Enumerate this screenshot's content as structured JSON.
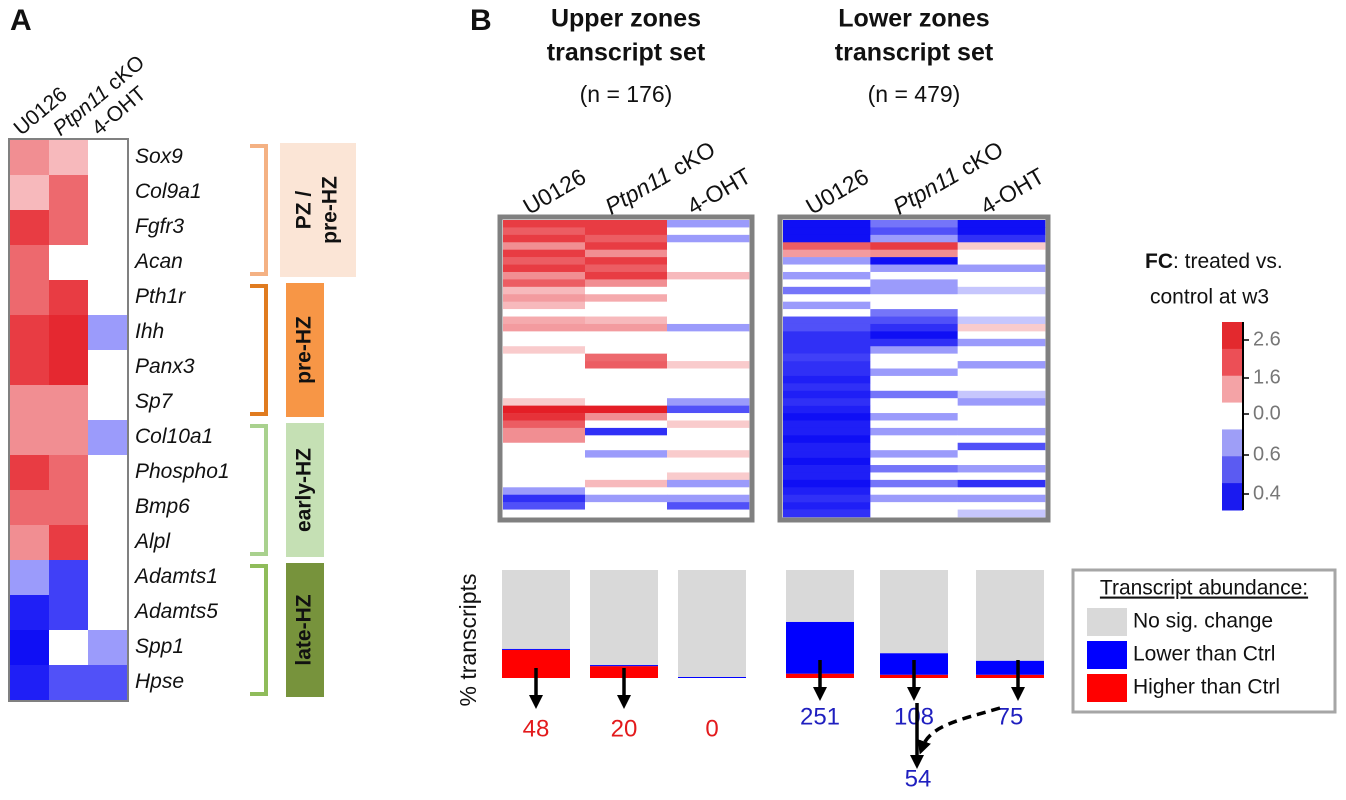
{
  "panel_labels": [
    "A",
    "B"
  ],
  "chart_data": [
    {
      "type": "heatmap",
      "columns": [
        "U0126",
        "Ptpn11 cKO",
        "4-OHT"
      ],
      "rows": [
        "Sox9",
        "Col9a1",
        "Fgfr3",
        "Acan",
        "Pth1r",
        "Ihh",
        "Panx3",
        "Sp7",
        "Col10a1",
        "Phospho1",
        "Bmp6",
        "Alpl",
        "Adamts1",
        "Adamts5",
        "Spp1",
        "Hpse"
      ],
      "values": [
        [
          1.6,
          1.3,
          1
        ],
        [
          1.3,
          1.9,
          1
        ],
        [
          2.3,
          1.9,
          1
        ],
        [
          1.9,
          1,
          1
        ],
        [
          1.9,
          2.3,
          1
        ],
        [
          2.3,
          2.5,
          0.8
        ],
        [
          2.3,
          2.5,
          1
        ],
        [
          1.6,
          1.6,
          1
        ],
        [
          1.6,
          1.6,
          0.8
        ],
        [
          2.3,
          1.9,
          1
        ],
        [
          1.9,
          1.9,
          1
        ],
        [
          1.6,
          2.3,
          1
        ],
        [
          0.8,
          0.55,
          1
        ],
        [
          0.45,
          0.55,
          1
        ],
        [
          0.4,
          1,
          0.8
        ],
        [
          0.45,
          0.6,
          0.6
        ]
      ],
      "groups": [
        {
          "label": [
            "PZ /",
            "pre-HZ"
          ],
          "color": "#fbe5d6",
          "bracket_color": "#f4b183"
        },
        {
          "label": [
            "pre-HZ"
          ],
          "color": "#f79646",
          "bracket_color": "#e07b1f"
        },
        {
          "label": [
            "early-HZ"
          ],
          "color": "#c5e0b4",
          "bracket_color": "#a9d18e"
        },
        {
          "label": [
            "late-HZ"
          ],
          "color": "#77933c",
          "bracket_color": "#8fbc5a"
        }
      ]
    },
    {
      "type": "heatmap",
      "title": [
        "Upper zones",
        "transcript set"
      ],
      "subtitle": "(n = 176)",
      "columns": [
        "U0126",
        "Ptpn11 cKO",
        "4-OHT"
      ],
      "values": [
        [
          2.3,
          2.3,
          0.8
        ],
        [
          2.0,
          2.3,
          1
        ],
        [
          2.3,
          2.0,
          0.8
        ],
        [
          1.6,
          2.3,
          1
        ],
        [
          2.3,
          1.6,
          1
        ],
        [
          2.0,
          2.3,
          1
        ],
        [
          2.3,
          2.0,
          1
        ],
        [
          1.6,
          2.3,
          1.3
        ],
        [
          2.0,
          1.6,
          1
        ],
        [
          1.3,
          1,
          1
        ],
        [
          1.5,
          1.4,
          1
        ],
        [
          1.3,
          1,
          1
        ],
        [
          1,
          1,
          1
        ],
        [
          1.4,
          1.3,
          1
        ],
        [
          1.5,
          1.5,
          0.8
        ],
        [
          1,
          1,
          1
        ],
        [
          1,
          1,
          1
        ],
        [
          1.2,
          1,
          1
        ],
        [
          1,
          1.9,
          1
        ],
        [
          1,
          2.0,
          1.2
        ],
        [
          1,
          1,
          1
        ],
        [
          1,
          1,
          1
        ],
        [
          1,
          1,
          1
        ],
        [
          1,
          1,
          1
        ],
        [
          1.2,
          1,
          0.8
        ],
        [
          2.6,
          2.6,
          0.6
        ],
        [
          2.4,
          1.6,
          1
        ],
        [
          2.0,
          1,
          1.2
        ],
        [
          1.6,
          0.5,
          1
        ],
        [
          1.6,
          1,
          1
        ],
        [
          1,
          1,
          1
        ],
        [
          1,
          0.8,
          1.2
        ],
        [
          1,
          1,
          1
        ],
        [
          1,
          1,
          1
        ],
        [
          1,
          1,
          1.2
        ],
        [
          1,
          1.3,
          0.8
        ],
        [
          0.8,
          1,
          1
        ],
        [
          0.5,
          0.8,
          0.8
        ],
        [
          0.6,
          1,
          0.6
        ],
        [
          1,
          1,
          1
        ]
      ]
    },
    {
      "type": "heatmap",
      "title": [
        "Lower zones",
        "transcript set"
      ],
      "subtitle": "(n = 479)",
      "columns": [
        "U0126",
        "Ptpn11 cKO",
        "4-OHT"
      ],
      "values": [
        [
          0.4,
          0.7,
          0.4
        ],
        [
          0.4,
          0.6,
          0.4
        ],
        [
          0.4,
          0.8,
          0.5
        ],
        [
          2.0,
          2.3,
          1.2
        ],
        [
          1.5,
          1.6,
          1
        ],
        [
          0.8,
          0.4,
          1
        ],
        [
          1,
          0.8,
          0.8
        ],
        [
          0.8,
          1,
          1
        ],
        [
          1,
          0.8,
          1
        ],
        [
          0.7,
          0.8,
          0.9
        ],
        [
          1,
          1,
          1
        ],
        [
          0.8,
          1,
          1
        ],
        [
          1,
          0.7,
          1
        ],
        [
          0.6,
          0.6,
          0.9
        ],
        [
          0.6,
          0.5,
          1.2
        ],
        [
          0.5,
          0.4,
          1
        ],
        [
          0.5,
          0.5,
          0.8
        ],
        [
          0.5,
          0.8,
          1
        ],
        [
          0.55,
          1,
          1
        ],
        [
          0.5,
          1,
          0.8
        ],
        [
          0.5,
          0.8,
          1
        ],
        [
          0.45,
          1,
          1
        ],
        [
          0.5,
          1,
          1
        ],
        [
          0.45,
          0.7,
          0.9
        ],
        [
          0.5,
          1,
          0.8
        ],
        [
          0.45,
          1,
          1
        ],
        [
          0.4,
          0.8,
          1
        ],
        [
          0.45,
          1,
          1
        ],
        [
          0.45,
          0.8,
          0.8
        ],
        [
          0.4,
          1,
          1
        ],
        [
          0.45,
          1,
          0.6
        ],
        [
          0.45,
          0.8,
          1
        ],
        [
          0.4,
          1,
          1
        ],
        [
          0.45,
          0.7,
          0.8
        ],
        [
          0.45,
          1,
          1
        ],
        [
          0.4,
          0.7,
          0.5
        ],
        [
          0.45,
          1,
          1
        ],
        [
          0.5,
          0.8,
          0.8
        ],
        [
          0.45,
          1,
          1
        ],
        [
          0.5,
          1,
          0.9
        ]
      ]
    },
    {
      "type": "bar",
      "stacked": true,
      "ylabel": "% transcripts",
      "legend_title": "Transcript abundance:",
      "series": [
        {
          "name": "Higher than Ctrl",
          "color": "#ff0000",
          "values": [
            26,
            11,
            0,
            4,
            3,
            3
          ]
        },
        {
          "name": "Lower than Ctrl",
          "color": "#0000ff",
          "values": [
            1,
            1,
            1,
            48,
            20,
            13
          ]
        },
        {
          "name": "No sig. change",
          "color": "#d9d9d9",
          "values": [
            73,
            88,
            99,
            48,
            77,
            84
          ]
        }
      ],
      "counts": [
        48,
        20,
        0,
        251,
        108,
        75
      ],
      "count_colors": [
        "#e31a1c",
        "#e31a1c",
        "#e31a1c",
        "#1f1fbf",
        "#1f1fbf",
        "#1f1fbf"
      ],
      "overlap": 54
    },
    {
      "type": "colorbar",
      "title_bold": "FC",
      "title": ": treated vs.",
      "title_line2": "control at w3",
      "colors": [
        "#e3292e",
        "#ec4f56",
        "#f4a3a6",
        "#ffffff",
        "#9e9ef7",
        "#5b5bf2",
        "#1a1af0"
      ],
      "ticks": [
        2.6,
        1.6,
        {
          "value": 0,
          "label": "0.0"
        },
        0.6,
        0.4
      ]
    }
  ]
}
